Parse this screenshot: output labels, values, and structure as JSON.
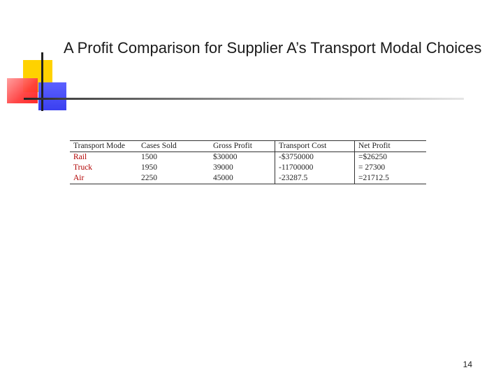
{
  "slide": {
    "title": "A Profit Comparison for Supplier A’s Transport Modal Choices",
    "page_number": "14"
  },
  "table": {
    "headers": [
      "Transport Mode",
      "Cases Sold",
      "Gross Profit",
      "Transport Cost",
      "Net Profit"
    ],
    "rows": [
      [
        "Rail",
        "1500",
        "$30000",
        "-$3750000",
        "=$26250"
      ],
      [
        "Truck",
        "1950",
        "39000",
        "-11700000",
        "= 27300"
      ],
      [
        "Air",
        "2250",
        "45000",
        "-23287.5",
        "=21712.5"
      ]
    ]
  },
  "colors": {
    "accent_yellow": "#ffd200",
    "accent_red": "#ff3b3b",
    "accent_blue": "#3a3ff0",
    "mode_text": "#b00000"
  }
}
